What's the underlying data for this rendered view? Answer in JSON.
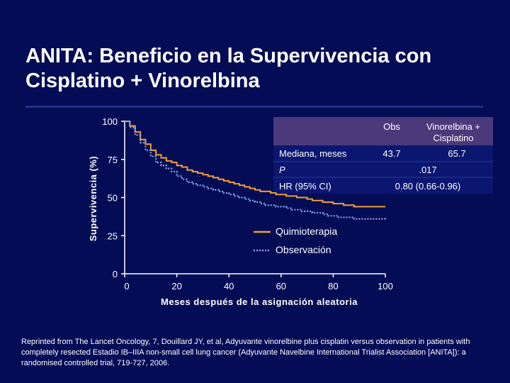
{
  "title_line1": "ANITA: Beneficio en la Supervivencia con",
  "title_line2": "Cisplatino + Vinorelbina",
  "footnote": "Reprinted from The Lancet Oncology, 7, Douillard JY, et al, Adyuvante vinorelbine plus cisplatin versus observation in patients with completely resected Estadio IB–IIIA non-small cell lung cancer (Adyuvante Navelbine International Trialist Association [ANITA]): a randomised controlled trial, 719-727, 2006.",
  "colors": {
    "background": "#040c56",
    "quimioterapia": "#f0a030",
    "observacion": "#8aa8e8",
    "table_header": "#4a3a7a",
    "table_body": "#0a1670",
    "axis": "#ffffff"
  },
  "table": {
    "col_obs": "Obs",
    "col_vino": "Vinorelbina +\nCisplatino",
    "rows": [
      {
        "label": "Mediana, meses",
        "obs": "43.7",
        "vino": "65.7"
      },
      {
        "label": "P",
        "span": ".017"
      },
      {
        "label": "HR (95% CI)",
        "span": "0.80 (0.66-0.96)"
      }
    ]
  },
  "chart_data": {
    "type": "line",
    "xlabel": "Meses después de la asignación aleatoria",
    "ylabel": "Supervivencia (%)",
    "xlim": [
      0,
      100
    ],
    "ylim": [
      0,
      100
    ],
    "xticks": [
      "0",
      "20",
      "40",
      "60",
      "80",
      "100"
    ],
    "yticks": [
      "0",
      "25",
      "50",
      "75",
      "100"
    ],
    "legend": {
      "placement": "bottom-right"
    },
    "series": [
      {
        "name": "Quimioterapia",
        "style": "solid",
        "x": [
          0,
          2,
          4,
          6,
          8,
          10,
          12,
          14,
          16,
          18,
          20,
          22,
          24,
          26,
          28,
          30,
          32,
          34,
          36,
          38,
          40,
          42,
          44,
          46,
          48,
          50,
          52,
          54,
          56,
          58,
          60,
          62,
          64,
          66,
          68,
          70,
          72,
          74,
          76,
          78,
          80,
          82,
          84,
          86,
          88,
          90,
          95,
          100
        ],
        "y": [
          100,
          97,
          93,
          88,
          85,
          81,
          78,
          76,
          74,
          73,
          71,
          70,
          68,
          67,
          66,
          65,
          64,
          63,
          62,
          61,
          60,
          59,
          58,
          57,
          56,
          55,
          54,
          54,
          53,
          52,
          52,
          51,
          51,
          50,
          50,
          49,
          48,
          48,
          47,
          47,
          46,
          46,
          45,
          45,
          44,
          44,
          44,
          44
        ]
      },
      {
        "name": "Observación",
        "style": "dotted",
        "x": [
          0,
          2,
          4,
          6,
          8,
          10,
          12,
          14,
          16,
          18,
          20,
          22,
          24,
          26,
          28,
          30,
          32,
          34,
          36,
          38,
          40,
          42,
          44,
          46,
          48,
          50,
          52,
          54,
          56,
          58,
          60,
          62,
          64,
          66,
          68,
          70,
          72,
          74,
          76,
          78,
          80,
          82,
          84,
          86,
          88,
          90,
          95,
          100
        ],
        "y": [
          100,
          96,
          91,
          86,
          81,
          77,
          73,
          71,
          69,
          67,
          64,
          62,
          60,
          59,
          58,
          57,
          56,
          55,
          54,
          53,
          52,
          51,
          50,
          49,
          48,
          47,
          46,
          45,
          45,
          44,
          44,
          43,
          42,
          42,
          41,
          41,
          40,
          40,
          39,
          38,
          38,
          37,
          37,
          37,
          36,
          36,
          36,
          35
        ]
      }
    ]
  }
}
